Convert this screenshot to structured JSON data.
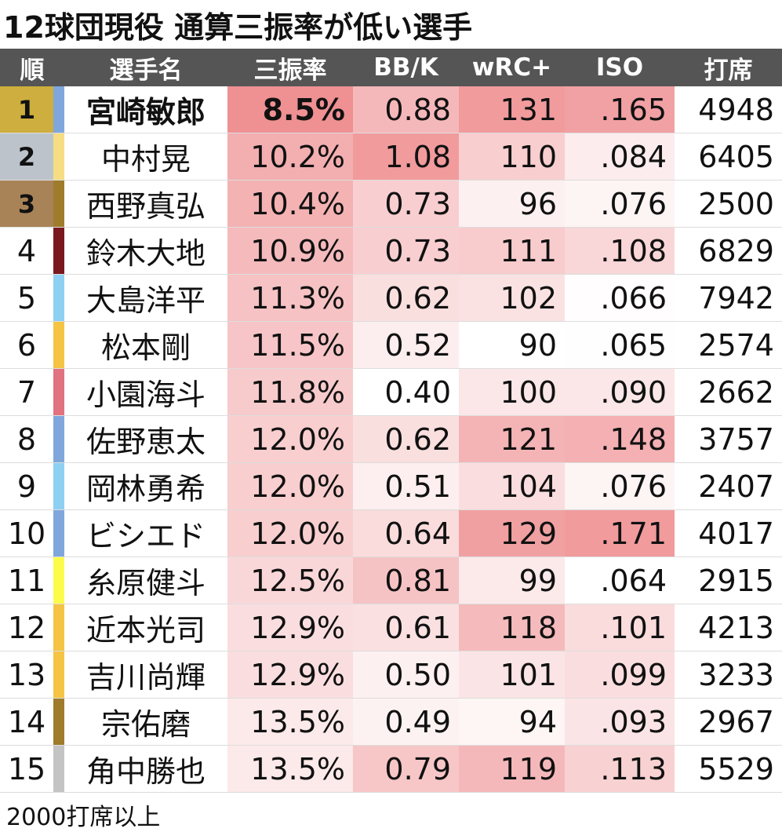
{
  "title": "12球団現役 通算三振率が低い選手",
  "table": {
    "headers": [
      "順",
      "選手名",
      "三振率",
      "BB/K",
      "wRC+",
      "ISO",
      "打席"
    ],
    "heat": [
      null,
      null,
      "low",
      "high",
      "high",
      "high",
      null
    ],
    "rows": [
      {
        "cells": [
          "1",
          "宮崎敏郎",
          "8.5%",
          "0.88",
          "131",
          ".165",
          "4948"
        ],
        "team_color": "#7fa7dc",
        "rank_color": "#cdae3e",
        "bold": true
      },
      {
        "cells": [
          "2",
          "中村晃",
          "10.2%",
          "1.08",
          "110",
          ".084",
          "6405"
        ],
        "team_color": "#f6dc82",
        "rank_color": "#bcc3cb"
      },
      {
        "cells": [
          "3",
          "西野真弘",
          "10.4%",
          "0.73",
          "96",
          ".076",
          "2500"
        ],
        "team_color": "#9e7c2c",
        "rank_color": "#a98358"
      },
      {
        "cells": [
          "4",
          "鈴木大地",
          "10.9%",
          "0.73",
          "111",
          ".108",
          "6829"
        ],
        "team_color": "#7a1820"
      },
      {
        "cells": [
          "5",
          "大島洋平",
          "11.3%",
          "0.62",
          "102",
          ".066",
          "7942"
        ],
        "team_color": "#8dd0f2"
      },
      {
        "cells": [
          "6",
          "松本剛",
          "11.5%",
          "0.52",
          "90",
          ".065",
          "2574"
        ],
        "team_color": "#f5c444"
      },
      {
        "cells": [
          "7",
          "小園海斗",
          "11.8%",
          "0.40",
          "100",
          ".090",
          "2662"
        ],
        "team_color": "#e1727f"
      },
      {
        "cells": [
          "8",
          "佐野恵太",
          "12.0%",
          "0.62",
          "121",
          ".148",
          "3757"
        ],
        "team_color": "#7fa7dc"
      },
      {
        "cells": [
          "9",
          "岡林勇希",
          "12.0%",
          "0.51",
          "104",
          ".076",
          "2407"
        ],
        "team_color": "#8dd0f2"
      },
      {
        "cells": [
          "10",
          "ビシエド",
          "12.0%",
          "0.64",
          "129",
          ".171",
          "4017"
        ],
        "team_color": "#7fa7dc"
      },
      {
        "cells": [
          "11",
          "糸原健斗",
          "12.5%",
          "0.81",
          "99",
          ".064",
          "2915"
        ],
        "team_color": "#fdfb4a"
      },
      {
        "cells": [
          "12",
          "近本光司",
          "12.9%",
          "0.61",
          "118",
          ".101",
          "4213"
        ],
        "team_color": "#f5c444"
      },
      {
        "cells": [
          "13",
          "吉川尚輝",
          "12.9%",
          "0.50",
          "101",
          ".099",
          "3233"
        ],
        "team_color": "#f5c444"
      },
      {
        "cells": [
          "14",
          "宗佑磨",
          "13.5%",
          "0.49",
          "94",
          ".093",
          "2967"
        ],
        "team_color": "#9e7c2c"
      },
      {
        "cells": [
          "15",
          "角中勝也",
          "13.5%",
          "0.79",
          "119",
          ".113",
          "5529"
        ],
        "team_color": "#c4c4c4"
      }
    ]
  },
  "footnote": "2000打席以上"
}
